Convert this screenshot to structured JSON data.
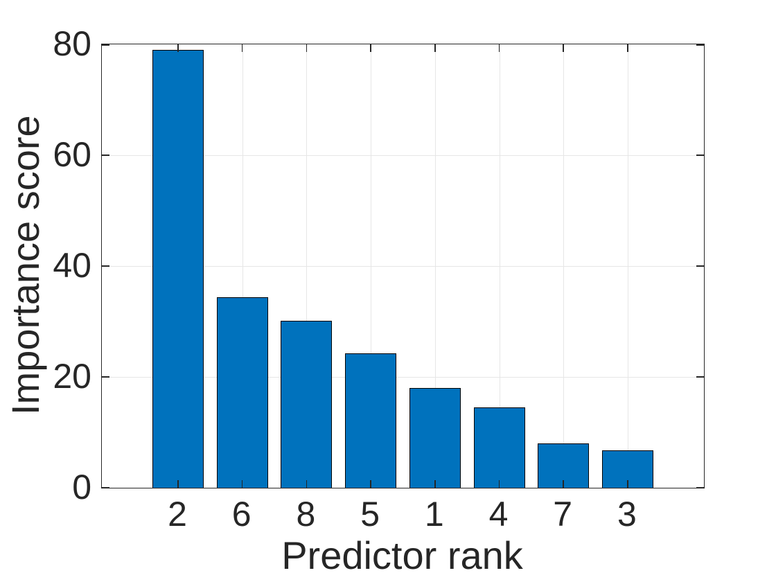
{
  "chart_data": {
    "type": "bar",
    "title": "",
    "categories": [
      "2",
      "6",
      "8",
      "5",
      "1",
      "4",
      "7",
      "3"
    ],
    "values": [
      79,
      34.4,
      30.1,
      24.3,
      18,
      14.5,
      8,
      6.8
    ],
    "xlabel": "Predictor rank",
    "ylabel": "Importance score",
    "yticks": [
      0,
      20,
      40,
      60,
      80
    ],
    "ylim": [
      0,
      80
    ],
    "grid": true,
    "legend": null,
    "bar_color": "#0072bd",
    "bar_edge_color": "#000000",
    "grid_color": "#e6e6e6",
    "axis_color": "#262626",
    "background_color": "#ffffff"
  }
}
